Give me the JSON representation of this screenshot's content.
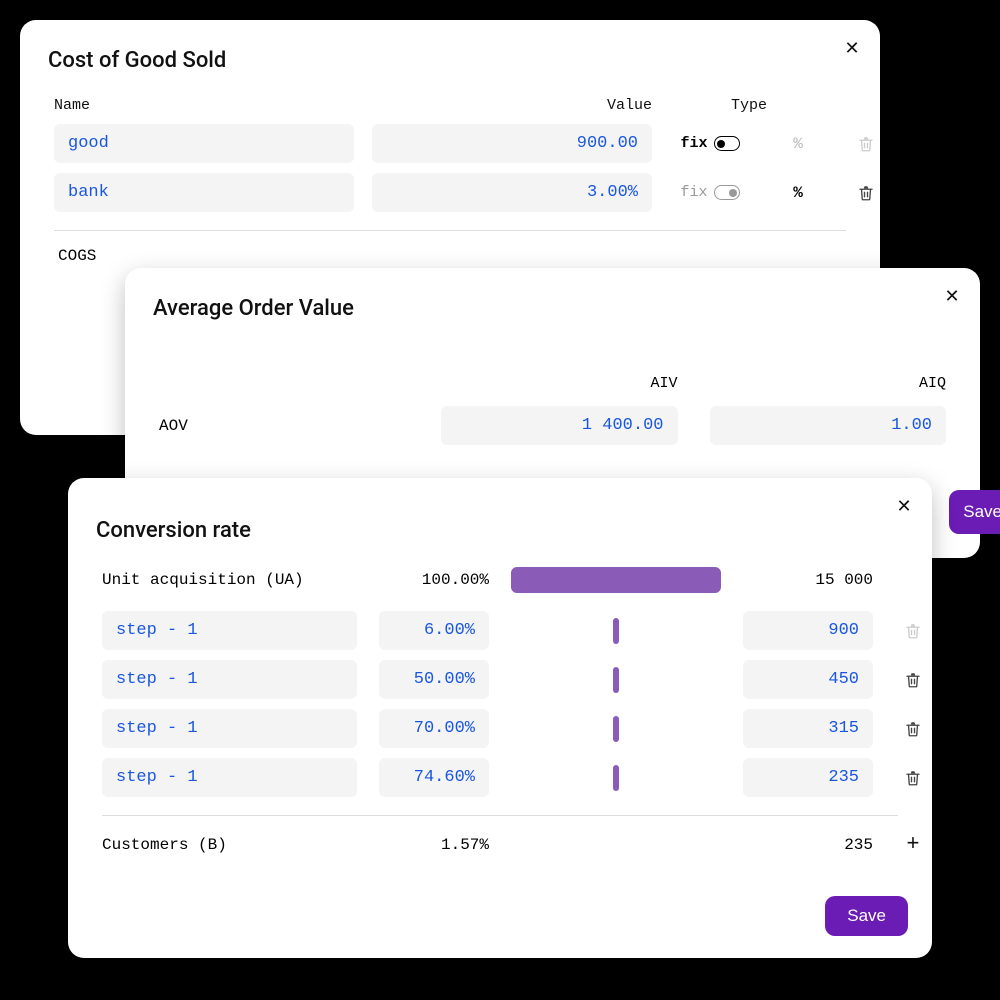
{
  "colors": {
    "accent": "#6a1cb5",
    "link": "#1a57e0",
    "input_bg": "#f4f4f4",
    "bar": "#8a5cb8",
    "text": "#111111",
    "muted": "#bbbbbb",
    "card_bg": "#ffffff",
    "page_bg": "#000000"
  },
  "typography": {
    "title_fontsize": 22,
    "body_fontsize": 16,
    "mono_family": "SF Mono / Menlo / Consolas"
  },
  "cogs": {
    "title": "Cost of Good Sold",
    "columns": {
      "name": "Name",
      "value": "Value",
      "type": "Type"
    },
    "rows": [
      {
        "name": "good",
        "value": "900.00",
        "fix_active": true,
        "pct_active": false,
        "trash_enabled": false
      },
      {
        "name": "bank",
        "value": "3.00%",
        "fix_active": false,
        "pct_active": true,
        "trash_enabled": true
      }
    ],
    "fix_label": "fix",
    "pct_label": "%",
    "footer_label": "COGS"
  },
  "aov": {
    "title": "Average Order Value",
    "columns": {
      "aiv": "AIV",
      "aiq": "AIQ"
    },
    "row_label": "AOV",
    "aiv_value": "1 400.00",
    "aiq_value": "1.00",
    "save_label": "Save"
  },
  "cr": {
    "title": "Conversion rate",
    "ua": {
      "label": "Unit acquisition (UA)",
      "pct": "100.00%",
      "count": "15 000",
      "bar_width_pct": 100
    },
    "steps": [
      {
        "name": "step - 1",
        "pct": "6.00%",
        "count": "900",
        "tick_height": 26,
        "trash_enabled": false
      },
      {
        "name": "step - 1",
        "pct": "50.00%",
        "count": "450",
        "tick_height": 26,
        "trash_enabled": true
      },
      {
        "name": "step - 1",
        "pct": "70.00%",
        "count": "315",
        "tick_height": 26,
        "trash_enabled": true
      },
      {
        "name": "step - 1",
        "pct": "74.60%",
        "count": "235",
        "tick_height": 26,
        "trash_enabled": true
      }
    ],
    "footer": {
      "label": "Customers (B)",
      "pct": "1.57%",
      "count": "235"
    },
    "save_label": "Save"
  }
}
